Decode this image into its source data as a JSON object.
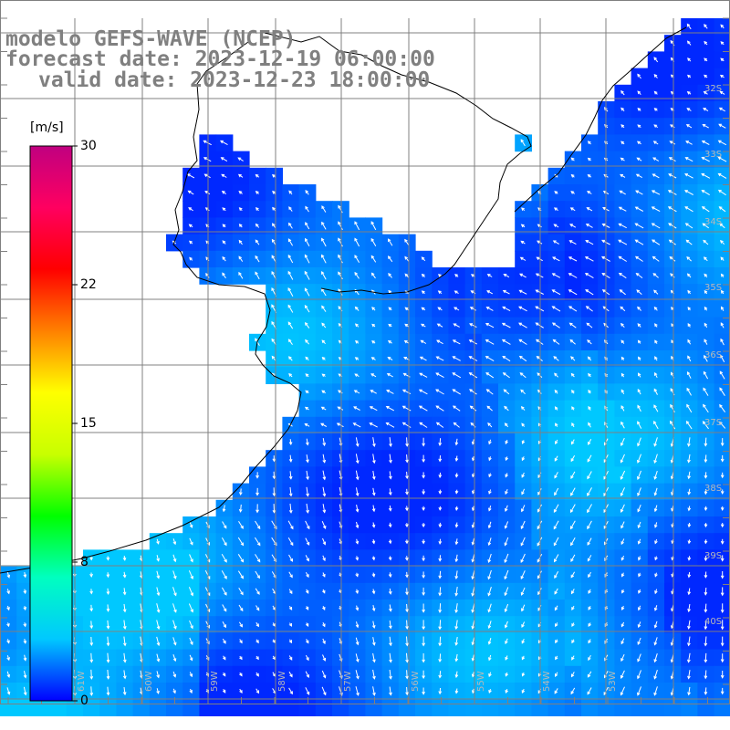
{
  "title": {
    "line1": "modelo GEFS-WAVE (NCEP)",
    "line2": "forecast date: 2023-12-19 06:00:00",
    "line3": "valid date: 2023-12-23 18:00:00"
  },
  "colorbar": {
    "unit": "[m/s]",
    "ticks": [
      "30",
      "22",
      "15",
      "8",
      "0"
    ],
    "min": 0,
    "max": 30,
    "colors": [
      "#0000ff",
      "#00c8ff",
      "#00ffc0",
      "#00ff00",
      "#c8ff00",
      "#ffff00",
      "#ff8000",
      "#ff0000",
      "#ff0060",
      "#c00080"
    ]
  },
  "lat_labels": [
    "32S",
    "33S",
    "34S",
    "35S",
    "36S",
    "37S",
    "38S",
    "39S",
    "40S"
  ],
  "lon_labels": [
    "61W",
    "60W",
    "59W",
    "58W",
    "57W",
    "56W",
    "55W",
    "54W",
    "53W"
  ],
  "colors": {
    "land": "#ffffff",
    "grid": "#808080",
    "coast": "#000000",
    "arrow": "#ffffff"
  }
}
